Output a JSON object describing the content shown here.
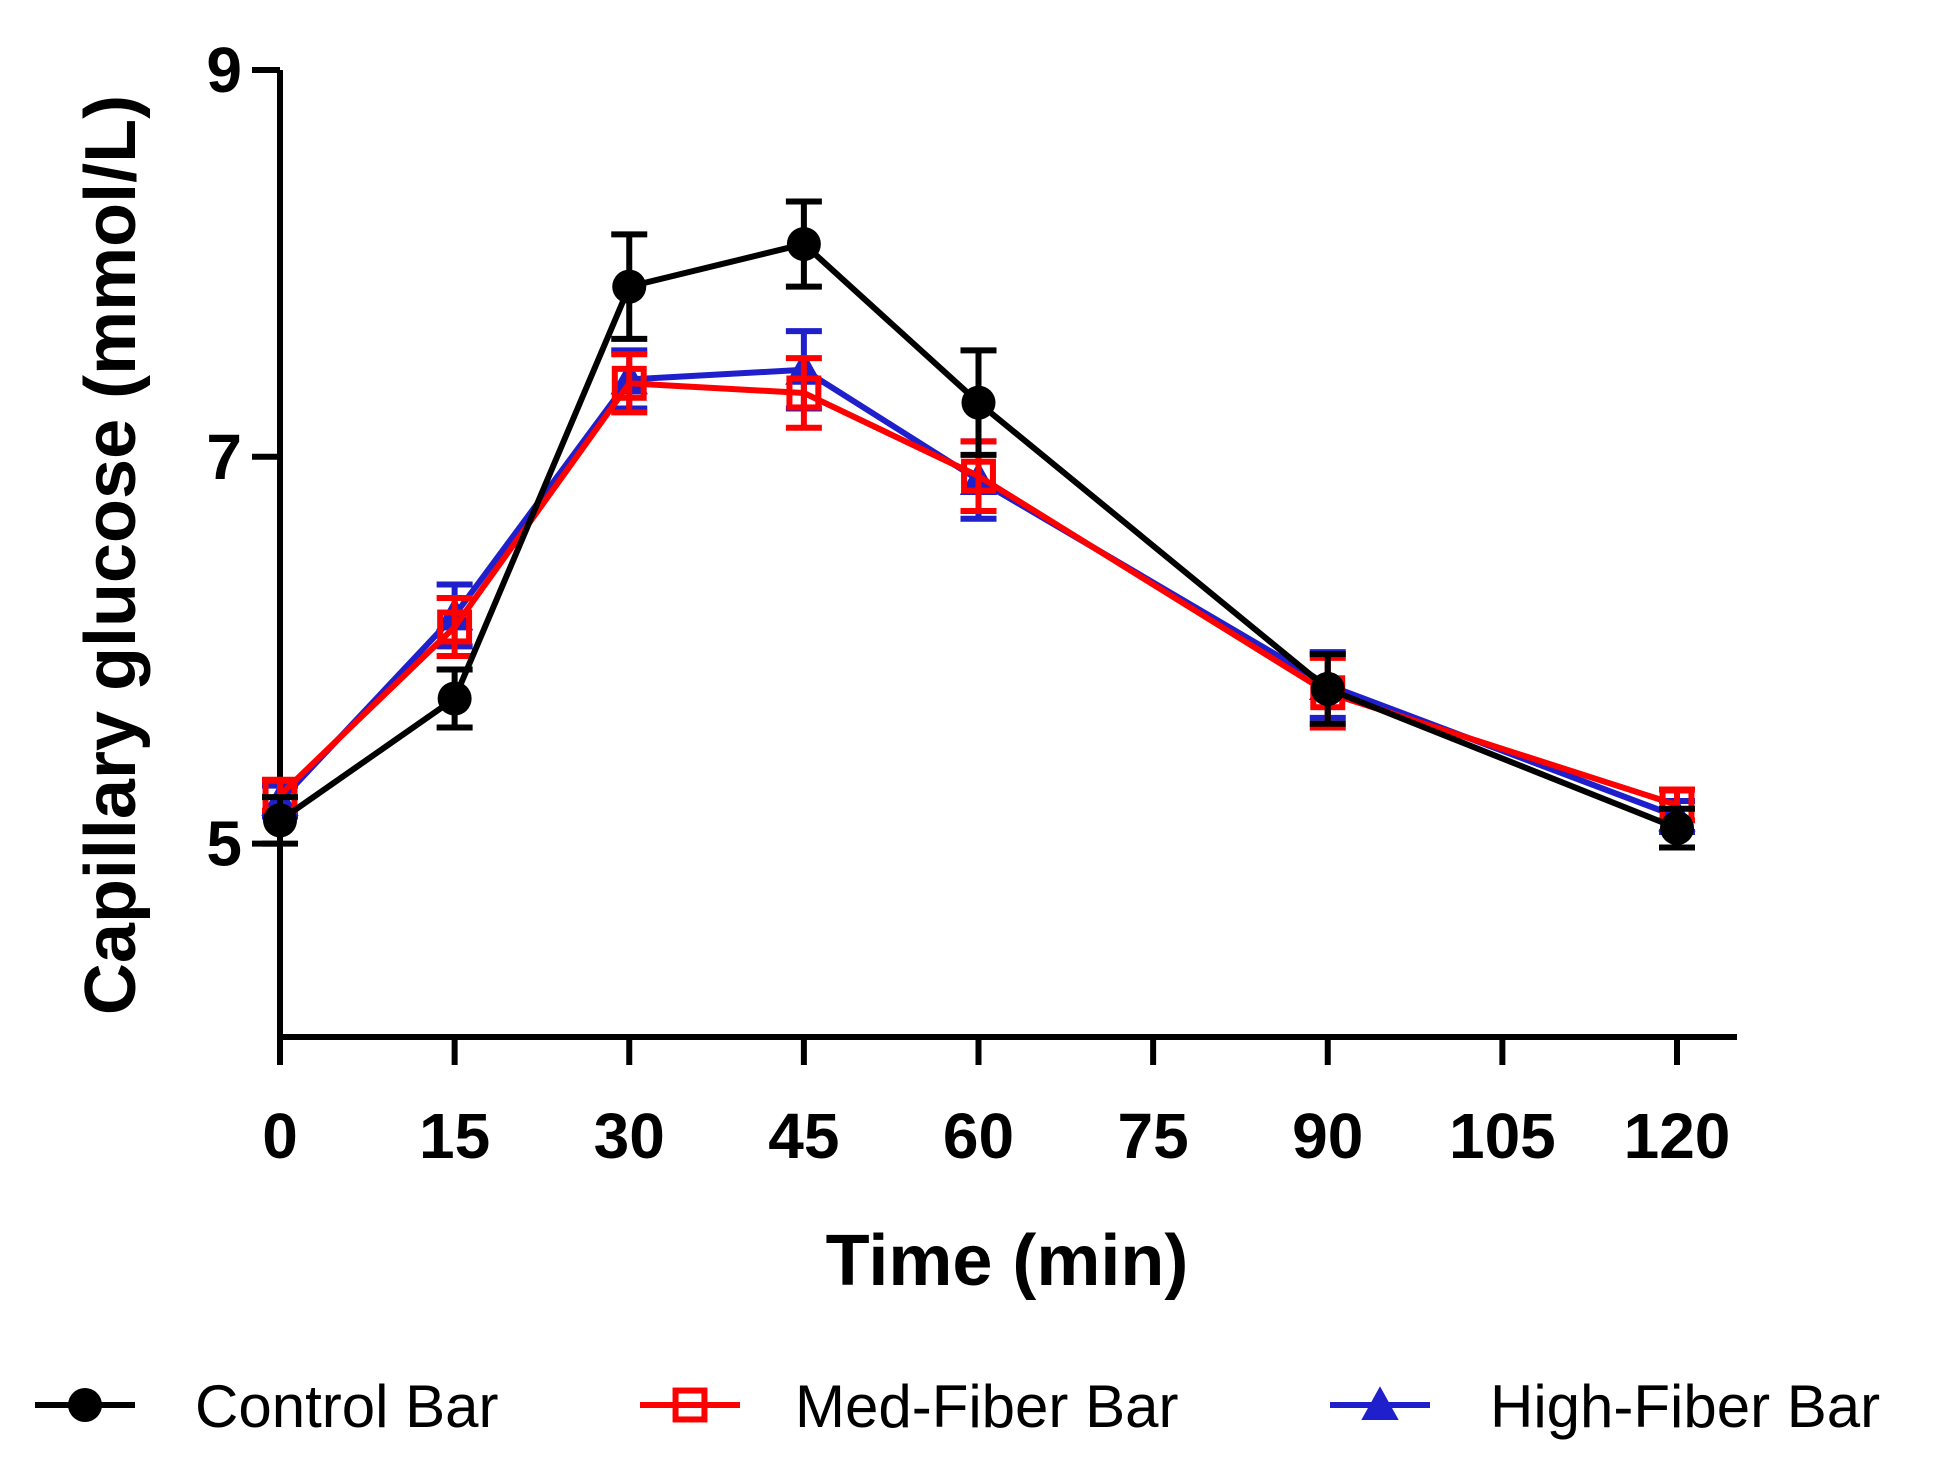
{
  "chart_data": {
    "type": "line",
    "title": "",
    "xlabel": "Time (min)",
    "ylabel": "Capillary glucose (mmol/L)",
    "xlim": [
      0,
      120
    ],
    "ylim": [
      4,
      9
    ],
    "xticks": [
      "0",
      "15",
      "30",
      "45",
      "60",
      "75",
      "90",
      "105",
      "120"
    ],
    "yticks": [
      "5",
      "7",
      "9"
    ],
    "x": [
      0,
      15,
      30,
      45,
      60,
      90,
      120
    ],
    "legend_position": "bottom",
    "series": [
      {
        "name": "Control Bar",
        "color": "#000000",
        "marker": "filled-circle",
        "values": [
          5.12,
          5.75,
          7.88,
          8.1,
          7.28,
          5.8,
          5.08
        ],
        "error": [
          0.12,
          0.15,
          0.27,
          0.22,
          0.27,
          0.18,
          0.1
        ]
      },
      {
        "name": "Med-Fiber Bar",
        "color": "#ff0000",
        "marker": "open-square",
        "values": [
          5.25,
          6.12,
          7.38,
          7.33,
          6.9,
          5.78,
          5.2
        ],
        "error": [
          0.08,
          0.15,
          0.15,
          0.18,
          0.18,
          0.18,
          0.08
        ]
      },
      {
        "name": "High-Fiber Bar",
        "color": "#1f1fcc",
        "marker": "filled-triangle",
        "values": [
          5.22,
          6.18,
          7.4,
          7.45,
          6.88,
          5.82,
          5.14
        ],
        "error": [
          0.08,
          0.16,
          0.15,
          0.2,
          0.2,
          0.17,
          0.08
        ]
      }
    ]
  }
}
